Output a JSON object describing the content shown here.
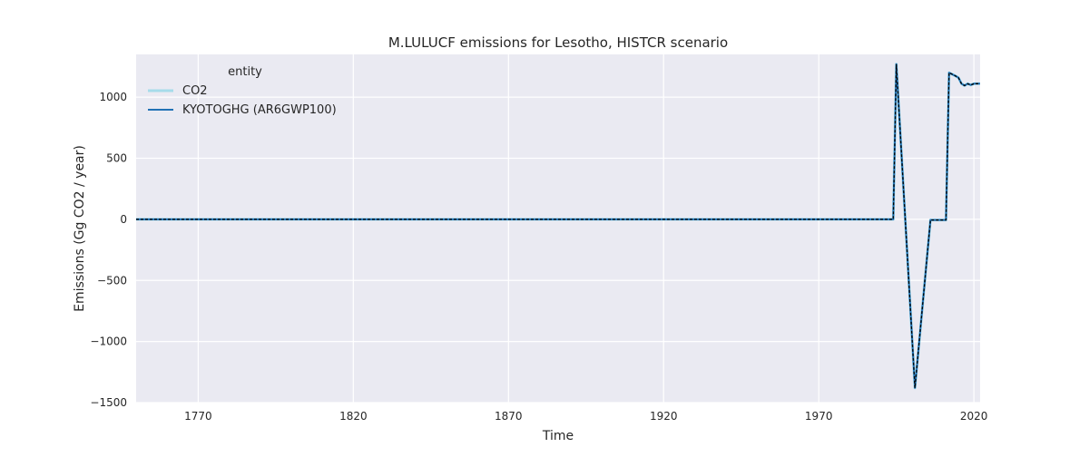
{
  "chart_data": {
    "type": "line",
    "title": "M.LULUCF emissions for Lesotho, HISTCR scenario",
    "xlabel": "Time",
    "ylabel": "Emissions (Gg CO2 / year)",
    "xlim": [
      1750,
      2022
    ],
    "ylim": [
      -1500,
      1350
    ],
    "x_ticks": [
      1770,
      1820,
      1870,
      1920,
      1970,
      2020
    ],
    "y_ticks": [
      -1500,
      -1000,
      -500,
      0,
      500,
      1000
    ],
    "x_tick_labels": [
      "1770",
      "1820",
      "1870",
      "1920",
      "1970",
      "2020"
    ],
    "y_tick_labels": [
      "−1500",
      "−1000",
      "−500",
      "0",
      "500",
      "1000"
    ],
    "grid": true,
    "legend": {
      "title": "entity",
      "placement": "top-left"
    },
    "series": [
      {
        "name": "CO2",
        "color": "#a6dcea",
        "points": [
          [
            1750,
            0
          ],
          [
            1990,
            0
          ],
          [
            1994,
            0
          ],
          [
            1995,
            1270
          ],
          [
            2001,
            -1380
          ],
          [
            2006,
            -5
          ],
          [
            2011,
            -5
          ],
          [
            2012,
            1200
          ],
          [
            2014,
            1175
          ],
          [
            2015,
            1160
          ],
          [
            2016,
            1110
          ],
          [
            2017,
            1095
          ],
          [
            2018,
            1110
          ],
          [
            2019,
            1100
          ],
          [
            2020,
            1110
          ],
          [
            2022,
            1110
          ]
        ]
      },
      {
        "name": "KYOTOGHG (AR6GWP100)",
        "color": "#2171b5",
        "points": [
          [
            1750,
            0
          ],
          [
            1990,
            0
          ],
          [
            1994,
            0
          ],
          [
            1995,
            1270
          ],
          [
            2001,
            -1380
          ],
          [
            2006,
            -5
          ],
          [
            2011,
            -5
          ],
          [
            2012,
            1200
          ],
          [
            2014,
            1175
          ],
          [
            2015,
            1160
          ],
          [
            2016,
            1110
          ],
          [
            2017,
            1095
          ],
          [
            2018,
            1110
          ],
          [
            2019,
            1100
          ],
          [
            2020,
            1110
          ],
          [
            2022,
            1110
          ]
        ]
      }
    ],
    "overlay": {
      "color": "#000000",
      "style": "dashed"
    }
  }
}
